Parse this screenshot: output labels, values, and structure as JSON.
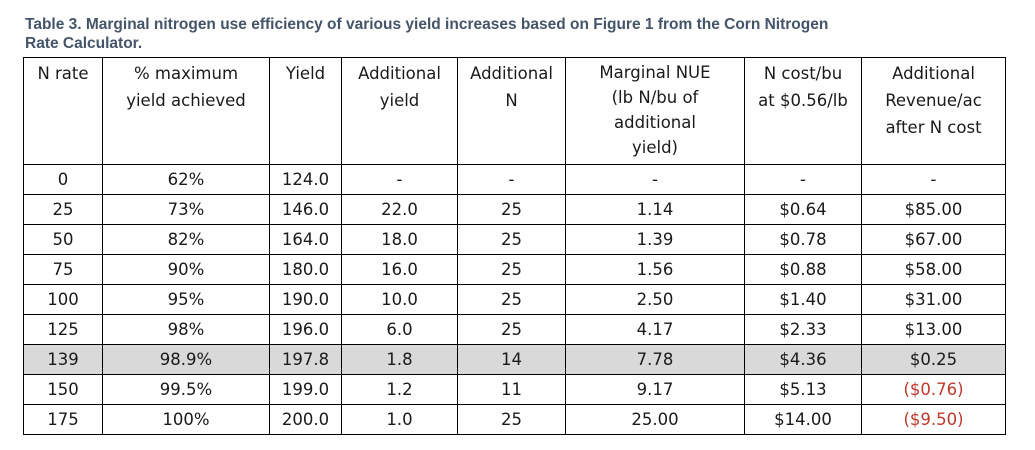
{
  "caption": {
    "line1": "Table 3. Marginal nitrogen use efficiency of various yield increases based on Figure 1 from the Corn Nitrogen",
    "line2": "Rate Calculator."
  },
  "table": {
    "headers": [
      [
        "N rate"
      ],
      [
        "% maximum",
        "yield achieved"
      ],
      [
        "Yield"
      ],
      [
        "Additional",
        "yield"
      ],
      [
        "Additional",
        "N"
      ],
      [
        "Marginal NUE",
        "(lb N/bu of",
        "additional",
        "yield)"
      ],
      [
        "N cost/bu",
        "at $0.56/lb"
      ],
      [
        "Additional",
        "Revenue/ac",
        "after N cost"
      ]
    ],
    "rows": [
      {
        "cells": [
          "0",
          "62%",
          "124.0",
          "-",
          "-",
          "-",
          "-",
          "-"
        ],
        "highlight": false,
        "negative": false
      },
      {
        "cells": [
          "25",
          "73%",
          "146.0",
          "22.0",
          "25",
          "1.14",
          "$0.64",
          "$85.00"
        ],
        "highlight": false,
        "negative": false
      },
      {
        "cells": [
          "50",
          "82%",
          "164.0",
          "18.0",
          "25",
          "1.39",
          "$0.78",
          "$67.00"
        ],
        "highlight": false,
        "negative": false
      },
      {
        "cells": [
          "75",
          "90%",
          "180.0",
          "16.0",
          "25",
          "1.56",
          "$0.88",
          "$58.00"
        ],
        "highlight": false,
        "negative": false
      },
      {
        "cells": [
          "100",
          "95%",
          "190.0",
          "10.0",
          "25",
          "2.50",
          "$1.40",
          "$31.00"
        ],
        "highlight": false,
        "negative": false
      },
      {
        "cells": [
          "125",
          "98%",
          "196.0",
          "6.0",
          "25",
          "4.17",
          "$2.33",
          "$13.00"
        ],
        "highlight": false,
        "negative": false
      },
      {
        "cells": [
          "139",
          "98.9%",
          "197.8",
          "1.8",
          "14",
          "7.78",
          "$4.36",
          "$0.25"
        ],
        "highlight": true,
        "negative": false
      },
      {
        "cells": [
          "150",
          "99.5%",
          "199.0",
          "1.2",
          "11",
          "9.17",
          "$5.13",
          "($0.76)"
        ],
        "highlight": false,
        "negative": true
      },
      {
        "cells": [
          "175",
          "100%",
          "200.0",
          "1.0",
          "25",
          "25.00",
          "$14.00",
          "($9.50)"
        ],
        "highlight": false,
        "negative": true
      }
    ],
    "colors": {
      "caption": "#44546a",
      "highlight_row": "#d9d9d9",
      "negative_value": "#c0392b",
      "border": "#000000"
    }
  }
}
